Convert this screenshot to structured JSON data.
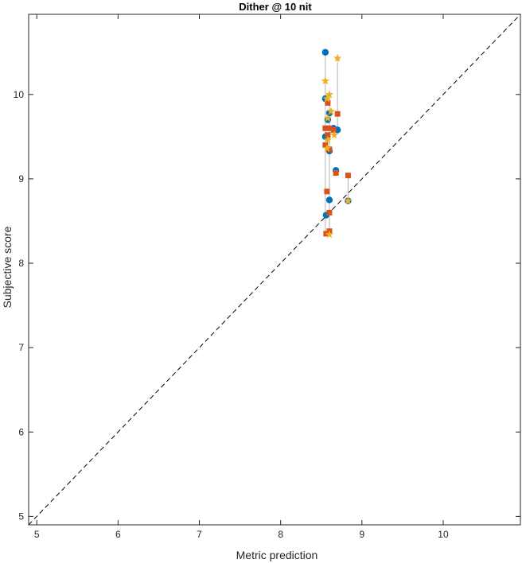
{
  "chart_data": {
    "type": "scatter",
    "title": "Dither @ 10 nit",
    "xlabel": "Metric prediction",
    "ylabel": "Subjective score",
    "xlim": [
      4.9,
      10.95
    ],
    "ylim": [
      4.9,
      10.95
    ],
    "xticks": [
      5,
      6,
      7,
      8,
      9,
      10
    ],
    "yticks": [
      5,
      6,
      7,
      8,
      9,
      10
    ],
    "grid": false,
    "legend": "none",
    "reference_line": {
      "style": "dashed",
      "from": [
        4.9,
        4.9
      ],
      "to": [
        10.95,
        10.95
      ],
      "color": "#000000"
    },
    "connector_color": "#b4b4b4",
    "series": [
      {
        "marker": "circle",
        "color": "#0072bd",
        "points": [
          [
            8.55,
            10.5
          ],
          [
            8.55,
            9.95
          ],
          [
            8.6,
            9.78
          ],
          [
            8.58,
            9.7
          ],
          [
            8.65,
            9.6
          ],
          [
            8.7,
            9.58
          ],
          [
            8.55,
            9.5
          ],
          [
            8.6,
            9.33
          ],
          [
            8.68,
            9.1
          ],
          [
            8.6,
            8.75
          ],
          [
            8.83,
            8.74
          ],
          [
            8.56,
            8.57
          ]
        ]
      },
      {
        "marker": "square",
        "color": "#d95319",
        "points": [
          [
            8.58,
            9.9
          ],
          [
            8.7,
            9.77
          ],
          [
            8.55,
            9.6
          ],
          [
            8.6,
            9.6
          ],
          [
            8.65,
            9.58
          ],
          [
            8.58,
            9.52
          ],
          [
            8.55,
            9.4
          ],
          [
            8.6,
            9.35
          ],
          [
            8.68,
            9.07
          ],
          [
            8.83,
            9.04
          ],
          [
            8.57,
            8.85
          ],
          [
            8.6,
            8.6
          ],
          [
            8.6,
            8.38
          ],
          [
            8.56,
            8.35
          ]
        ]
      },
      {
        "marker": "star",
        "color": "#edb120",
        "points": [
          [
            8.7,
            10.43
          ],
          [
            8.55,
            10.16
          ],
          [
            8.6,
            10.0
          ],
          [
            8.57,
            9.95
          ],
          [
            8.62,
            9.8
          ],
          [
            8.58,
            9.72
          ],
          [
            8.66,
            9.52
          ],
          [
            8.58,
            9.46
          ],
          [
            8.57,
            9.36
          ],
          [
            8.83,
            8.74
          ],
          [
            8.6,
            8.34
          ]
        ]
      }
    ],
    "connectors": [
      {
        "x": 8.55,
        "y": [
          8.35,
          10.5
        ]
      },
      {
        "x": 8.6,
        "y": [
          8.34,
          10.0
        ]
      },
      {
        "x": 8.7,
        "y": [
          9.58,
          10.43
        ]
      },
      {
        "x": 8.65,
        "y": [
          9.52,
          9.6
        ]
      },
      {
        "x": 8.68,
        "y": [
          9.07,
          9.1
        ]
      },
      {
        "x": 8.83,
        "y": [
          8.74,
          9.04
        ]
      }
    ]
  }
}
